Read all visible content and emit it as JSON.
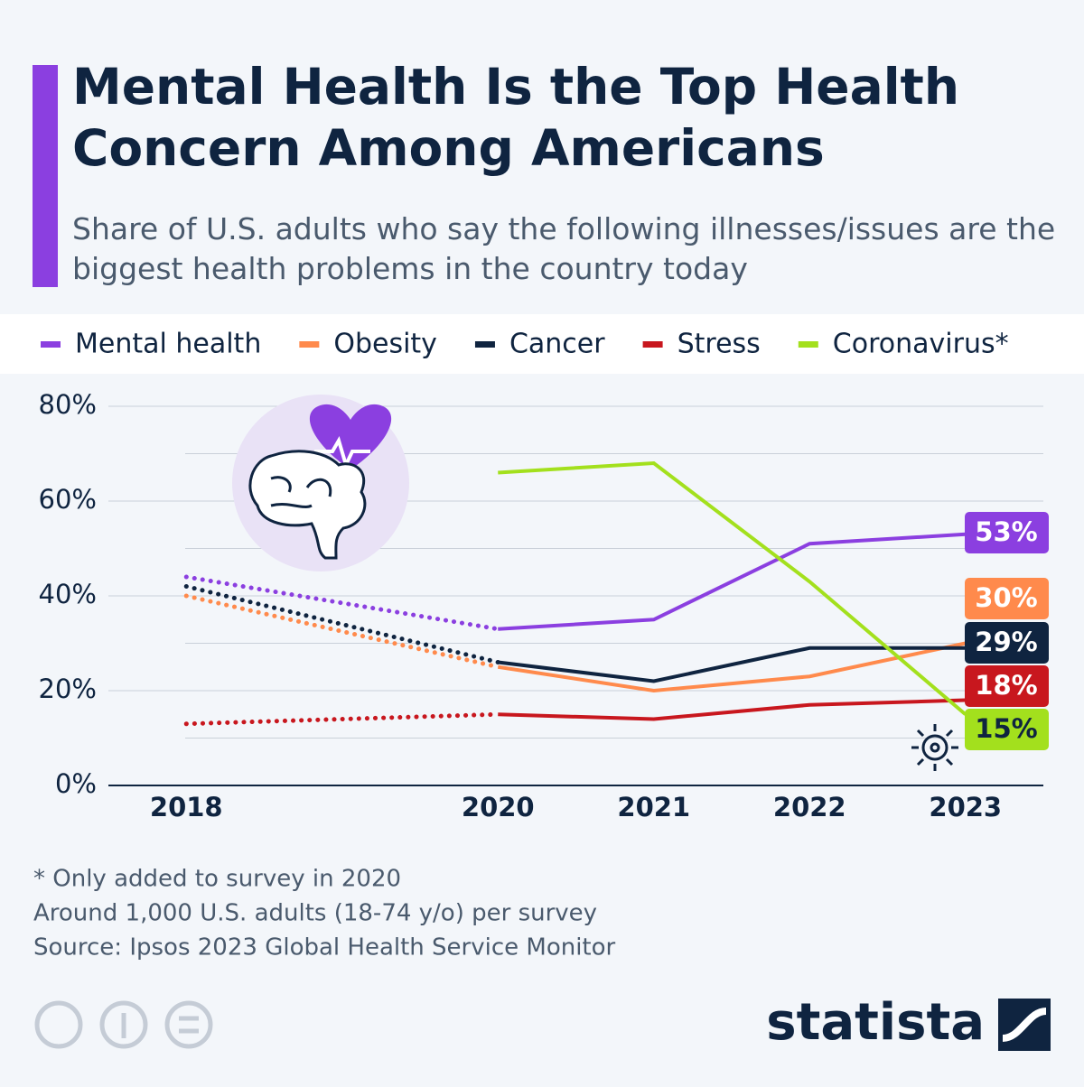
{
  "chart_data": {
    "type": "line",
    "title": "Mental Health Is the Top Health Concern Among Americans",
    "subtitle": "Share of U.S. adults who say the following illnesses/issues are the biggest health problems in the country today",
    "x": [
      2018,
      2020,
      2021,
      2022,
      2023
    ],
    "xlim": [
      2017.5,
      2023.5
    ],
    "xticks": [
      2018,
      2020,
      2021,
      2022,
      2023
    ],
    "ylim": [
      0,
      80
    ],
    "yticks": [
      {
        "value": 0,
        "label": "0%"
      },
      {
        "value": 20,
        "label": "20%"
      },
      {
        "value": 40,
        "label": "40%"
      },
      {
        "value": 60,
        "label": "60%"
      },
      {
        "value": 80,
        "label": "80%"
      }
    ],
    "minor_yticks": [
      10,
      30,
      50,
      70
    ],
    "grid": true,
    "dotted_before": 2020,
    "series": [
      {
        "name": "Mental health",
        "color": "#8b3fe0",
        "values": [
          44,
          33,
          35,
          51,
          53
        ],
        "value_labels": [
          null,
          null,
          null,
          null,
          "53%"
        ]
      },
      {
        "name": "Obesity",
        "color": "#ff8a4c",
        "values": [
          40,
          25,
          20,
          23,
          30
        ],
        "value_labels": [
          null,
          null,
          null,
          null,
          "30%"
        ]
      },
      {
        "name": "Cancer",
        "color": "#0f2440",
        "values": [
          42,
          26,
          22,
          29,
          29
        ],
        "value_labels": [
          null,
          null,
          null,
          null,
          "29%"
        ]
      },
      {
        "name": "Stress",
        "color": "#c8171e",
        "values": [
          13,
          15,
          14,
          17,
          18
        ],
        "value_labels": [
          null,
          null,
          null,
          null,
          "18%"
        ]
      },
      {
        "name": "Coronavirus*",
        "color": "#a3e01d",
        "values": [
          null,
          66,
          68,
          43,
          15
        ],
        "value_labels": [
          null,
          null,
          null,
          null,
          "15%"
        ]
      }
    ],
    "notes": [
      "* Only added to survey in 2020",
      "Around 1,000 U.S. adults (18-74 y/o) per survey",
      "Source: Ipsos 2023 Global Health Service Monitor"
    ],
    "brand": "statista"
  }
}
